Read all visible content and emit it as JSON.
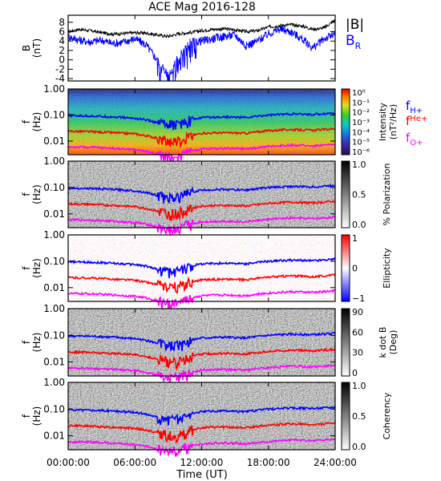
{
  "title": "ACE Mag 2016-128",
  "xaxis": {
    "label": "Time (UT)",
    "ticks": [
      "00:00:00",
      "06:00:00",
      "12:00:00",
      "18:00:00",
      "24:00:00"
    ],
    "range_hours": [
      0,
      24
    ]
  },
  "colors": {
    "B_total": "#000000",
    "B_R": "#0000ff",
    "f_H": "#0000ff",
    "f_He": "#ff0000",
    "f_O": "#ff00ff"
  },
  "legend": {
    "b_total": "|B|",
    "b_r_main": "B",
    "b_r_sub": "R",
    "fh_main": "f",
    "fh_sub": "H+",
    "fhe_main": "f",
    "fhe_sup": "He+",
    "fo_main": "f",
    "fo_sub": "O+"
  },
  "panels": [
    {
      "id": "mag",
      "ylabel_line1": "B",
      "ylabel_line2": "(nT)",
      "yticks": [
        "-4",
        "-2",
        "0",
        "2",
        "4",
        "6",
        "8"
      ],
      "ylim": [
        -4.5,
        9.5
      ]
    },
    {
      "id": "intensity",
      "ylabel_line1": "f",
      "ylabel_line2": "(Hz)",
      "yticks": [
        "1.00",
        "0.10",
        "0.01"
      ],
      "colorbar_label_1": "Intensity",
      "colorbar_label_2": "(nT²/Hz)",
      "colorbar_ticks": [
        "10⁰",
        "10⁻¹",
        "10⁻²",
        "10⁻³",
        "10⁻⁴",
        "10⁻⁵",
        "10⁻⁶"
      ]
    },
    {
      "id": "polarization",
      "ylabel_line1": "f",
      "ylabel_line2": "(Hz)",
      "yticks": [
        "1.00",
        "0.10",
        "0.01"
      ],
      "colorbar_label_1": "% Polarization",
      "colorbar_ticks": [
        "1.0",
        "0.5",
        "0.0"
      ]
    },
    {
      "id": "ellipticity",
      "ylabel_line1": "f",
      "ylabel_line2": "(Hz)",
      "yticks": [
        "1.00",
        "0.10",
        "0.01"
      ],
      "colorbar_label_1": "Ellipticity",
      "colorbar_ticks": [
        "1",
        "0",
        "−1"
      ]
    },
    {
      "id": "kdotb",
      "ylabel_line1": "f",
      "ylabel_line2": "(Hz)",
      "yticks": [
        "1.00",
        "0.10",
        "0.01"
      ],
      "colorbar_label_1": "k dot B",
      "colorbar_label_2": "(Deg)",
      "colorbar_ticks": [
        "90",
        "60",
        "30",
        "0"
      ]
    },
    {
      "id": "coherency",
      "ylabel_line1": "f",
      "ylabel_line2": "(Hz)",
      "yticks": [
        "1.00",
        "0.10",
        "0.01"
      ],
      "colorbar_label_1": "Coherency",
      "colorbar_ticks": [
        "1.0",
        "0.5",
        "0.0"
      ]
    }
  ],
  "chart_data": [
    {
      "type": "line",
      "x_unit": "hours UT",
      "ylabel": "B (nT)",
      "ylim": [
        -4.5,
        9.5
      ],
      "series": [
        {
          "name": "|B|",
          "x": [
            0,
            1,
            2,
            3,
            4,
            5,
            6,
            7,
            8,
            9,
            10,
            11,
            12,
            13,
            14,
            15,
            16,
            17,
            18,
            19,
            20,
            21,
            22,
            23,
            24
          ],
          "values": [
            6.0,
            6.5,
            6.2,
            5.8,
            5.5,
            5.6,
            5.8,
            5.7,
            5.3,
            5.0,
            5.6,
            5.8,
            6.2,
            6.5,
            6.6,
            6.4,
            6.0,
            6.2,
            7.0,
            7.3,
            7.5,
            7.2,
            6.5,
            6.8,
            8.5
          ]
        },
        {
          "name": "B_R",
          "x": [
            0,
            1,
            2,
            3,
            4,
            5,
            6,
            7,
            8,
            9,
            10,
            11,
            12,
            13,
            14,
            15,
            16,
            17,
            18,
            19,
            20,
            21,
            22,
            23,
            24
          ],
          "values": [
            5.0,
            4.2,
            3.8,
            4.2,
            3.5,
            3.8,
            4.5,
            3.2,
            0.0,
            -3.5,
            1.0,
            3.8,
            4.0,
            4.5,
            5.0,
            5.3,
            3.0,
            4.0,
            5.5,
            6.5,
            6.0,
            4.5,
            2.5,
            4.5,
            5.5
          ]
        }
      ]
    },
    {
      "type": "line",
      "x_unit": "hours UT",
      "ylabel": "f (Hz)",
      "yscale": "log",
      "ylim": [
        0.003,
        1.0
      ],
      "series": [
        {
          "name": "f_H+",
          "x": [
            0,
            2,
            4,
            6,
            7,
            8,
            9,
            10,
            11,
            12,
            14,
            16,
            18,
            20,
            22,
            24
          ],
          "values": [
            0.095,
            0.092,
            0.085,
            0.075,
            0.065,
            0.05,
            0.04,
            0.045,
            0.065,
            0.08,
            0.085,
            0.08,
            0.1,
            0.11,
            0.105,
            0.12
          ]
        },
        {
          "name": "f_He+",
          "x": [
            0,
            2,
            4,
            6,
            7,
            8,
            9,
            10,
            11,
            12,
            14,
            16,
            18,
            20,
            22,
            24
          ],
          "values": [
            0.024,
            0.023,
            0.021,
            0.019,
            0.016,
            0.013,
            0.01,
            0.011,
            0.016,
            0.02,
            0.021,
            0.02,
            0.025,
            0.028,
            0.026,
            0.03
          ]
        },
        {
          "name": "f_O+",
          "x": [
            0,
            2,
            4,
            6,
            7,
            8,
            9,
            10,
            11,
            12,
            14,
            16,
            18,
            20,
            22,
            24
          ],
          "values": [
            0.006,
            0.0058,
            0.0053,
            0.0047,
            0.0041,
            0.0032,
            0.0025,
            0.0028,
            0.004,
            0.005,
            0.0053,
            0.005,
            0.0062,
            0.007,
            0.0066,
            0.0075
          ]
        }
      ]
    }
  ]
}
